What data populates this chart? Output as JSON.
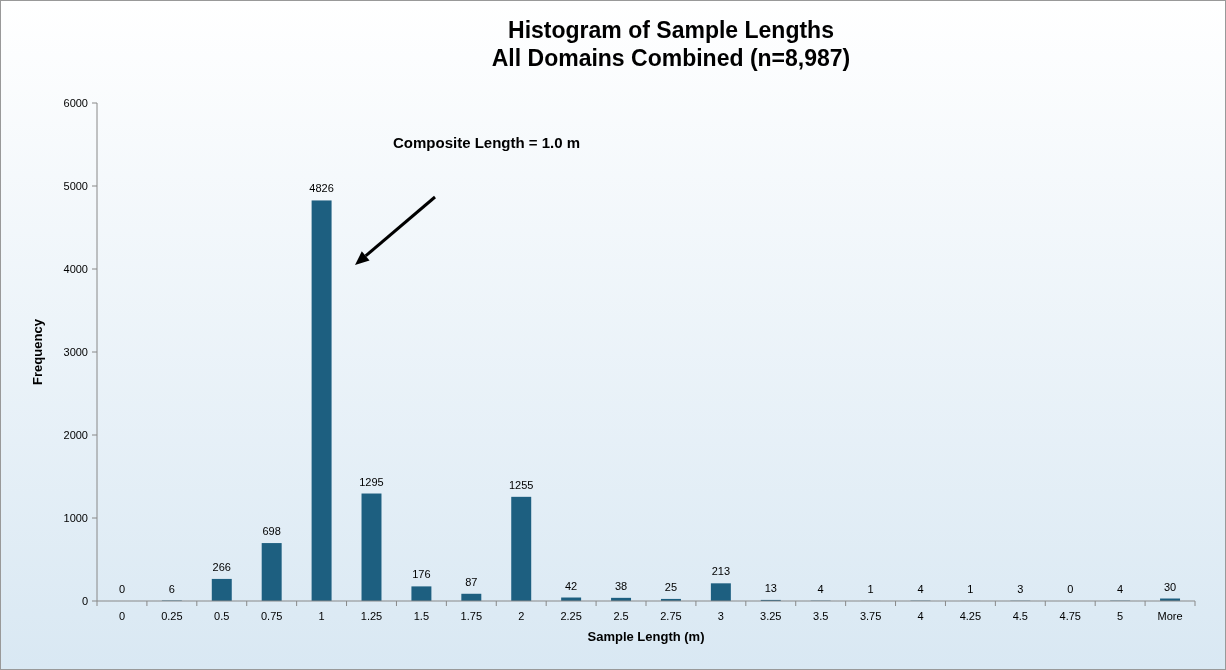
{
  "chart_data": {
    "type": "bar",
    "title": "Histogram of Sample Lengths\nAll Domains Combined (n=8,987)",
    "xlabel": "Sample Length (m)",
    "ylabel": "Frequency",
    "categories": [
      "0",
      "0.25",
      "0.5",
      "0.75",
      "1",
      "1.25",
      "1.5",
      "1.75",
      "2",
      "2.25",
      "2.5",
      "2.75",
      "3",
      "3.25",
      "3.5",
      "3.75",
      "4",
      "4.25",
      "4.5",
      "4.75",
      "5",
      "More"
    ],
    "values": [
      0,
      6,
      266,
      698,
      4826,
      1295,
      176,
      87,
      1255,
      42,
      38,
      25,
      213,
      13,
      4,
      1,
      4,
      1,
      3,
      0,
      4,
      30
    ],
    "color": "#1d5f80",
    "ylim": [
      0,
      6000
    ],
    "yticks": [
      0,
      1000,
      2000,
      3000,
      4000,
      5000,
      6000
    ],
    "data_labels": true,
    "annotations": [
      "Composite Length = 1.0 m"
    ]
  }
}
